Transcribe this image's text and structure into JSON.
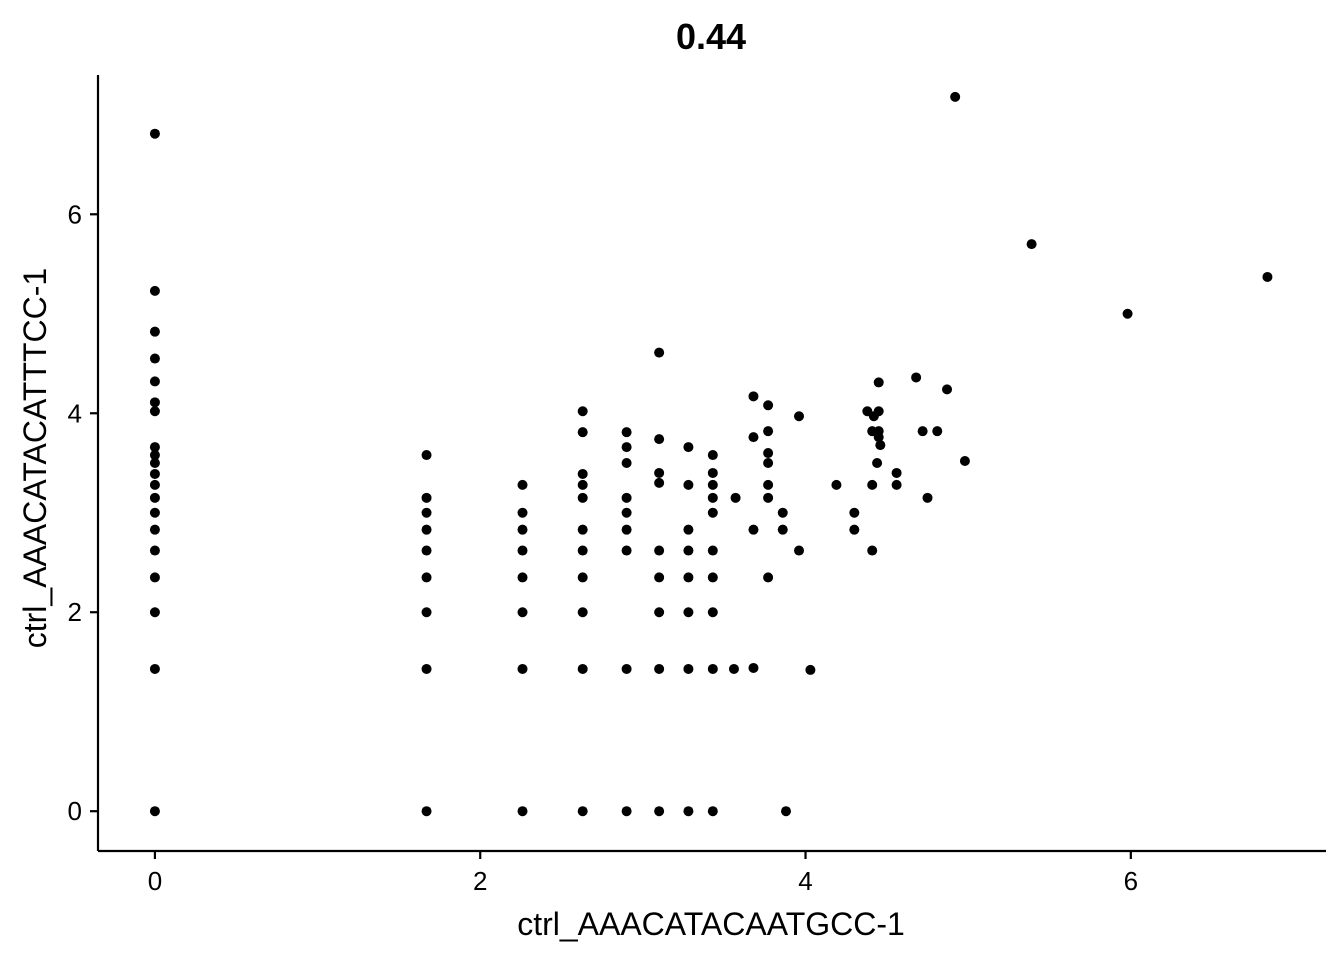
{
  "chart_data": {
    "type": "scatter",
    "title": "0.44",
    "xlabel": "ctrl_AAACATACAATGCC-1",
    "ylabel": "ctrl_AAACATACATTTCC-1",
    "xlim": [
      -0.35,
      7.2
    ],
    "ylim": [
      -0.4,
      7.4
    ],
    "xticks": [
      0,
      2,
      4,
      6
    ],
    "yticks": [
      0,
      2,
      4,
      6
    ],
    "grid": false,
    "legend": "none",
    "point_color": "#000000",
    "points": [
      [
        0,
        0
      ],
      [
        0,
        1.43
      ],
      [
        0,
        2.0
      ],
      [
        0,
        2.35
      ],
      [
        0,
        2.62
      ],
      [
        0,
        2.83
      ],
      [
        0,
        3.0
      ],
      [
        0,
        3.15
      ],
      [
        0,
        3.28
      ],
      [
        0,
        3.39
      ],
      [
        0,
        3.5
      ],
      [
        0,
        3.58
      ],
      [
        0,
        3.66
      ],
      [
        0,
        4.02
      ],
      [
        0,
        4.11
      ],
      [
        0,
        4.32
      ],
      [
        0,
        4.55
      ],
      [
        0,
        4.82
      ],
      [
        0,
        5.23
      ],
      [
        0,
        6.81
      ],
      [
        1.67,
        0
      ],
      [
        1.67,
        1.43
      ],
      [
        1.67,
        2.0
      ],
      [
        1.67,
        2.35
      ],
      [
        1.67,
        2.62
      ],
      [
        1.67,
        2.83
      ],
      [
        1.67,
        3.0
      ],
      [
        1.67,
        3.15
      ],
      [
        1.67,
        3.58
      ],
      [
        2.26,
        0
      ],
      [
        2.26,
        1.43
      ],
      [
        2.26,
        2.0
      ],
      [
        2.26,
        2.35
      ],
      [
        2.26,
        2.62
      ],
      [
        2.26,
        2.83
      ],
      [
        2.26,
        3.0
      ],
      [
        2.26,
        3.28
      ],
      [
        2.63,
        0
      ],
      [
        2.63,
        1.43
      ],
      [
        2.63,
        2.0
      ],
      [
        2.63,
        2.35
      ],
      [
        2.63,
        2.62
      ],
      [
        2.63,
        2.83
      ],
      [
        2.63,
        3.15
      ],
      [
        2.63,
        3.28
      ],
      [
        2.63,
        3.39
      ],
      [
        2.63,
        3.81
      ],
      [
        2.63,
        4.02
      ],
      [
        2.9,
        0
      ],
      [
        2.9,
        1.43
      ],
      [
        2.9,
        2.62
      ],
      [
        2.9,
        2.83
      ],
      [
        2.9,
        3.0
      ],
      [
        2.9,
        3.15
      ],
      [
        2.9,
        3.5
      ],
      [
        2.9,
        3.66
      ],
      [
        2.9,
        3.81
      ],
      [
        3.1,
        0
      ],
      [
        3.1,
        1.43
      ],
      [
        3.1,
        2.0
      ],
      [
        3.1,
        2.35
      ],
      [
        3.1,
        2.62
      ],
      [
        3.1,
        3.3
      ],
      [
        3.1,
        3.4
      ],
      [
        3.1,
        3.74
      ],
      [
        3.1,
        4.61
      ],
      [
        3.28,
        0
      ],
      [
        3.28,
        1.43
      ],
      [
        3.28,
        2.0
      ],
      [
        3.28,
        2.35
      ],
      [
        3.28,
        2.62
      ],
      [
        3.28,
        2.83
      ],
      [
        3.28,
        3.28
      ],
      [
        3.28,
        3.66
      ],
      [
        3.43,
        0
      ],
      [
        3.43,
        1.43
      ],
      [
        3.43,
        2.0
      ],
      [
        3.43,
        2.35
      ],
      [
        3.43,
        2.62
      ],
      [
        3.43,
        3.0
      ],
      [
        3.43,
        3.15
      ],
      [
        3.43,
        3.28
      ],
      [
        3.43,
        3.4
      ],
      [
        3.43,
        3.58
      ],
      [
        3.56,
        1.43
      ],
      [
        3.57,
        3.15
      ],
      [
        3.68,
        1.44
      ],
      [
        3.68,
        2.83
      ],
      [
        3.68,
        3.76
      ],
      [
        3.68,
        4.17
      ],
      [
        3.77,
        2.35
      ],
      [
        3.77,
        3.15
      ],
      [
        3.77,
        3.28
      ],
      [
        3.77,
        3.5
      ],
      [
        3.77,
        3.6
      ],
      [
        3.77,
        3.82
      ],
      [
        3.77,
        4.08
      ],
      [
        3.86,
        3.0
      ],
      [
        3.86,
        2.83
      ],
      [
        3.88,
        0
      ],
      [
        3.96,
        2.62
      ],
      [
        3.96,
        3.97
      ],
      [
        4.03,
        1.42
      ],
      [
        4.19,
        3.28
      ],
      [
        4.3,
        2.83
      ],
      [
        4.3,
        3.0
      ],
      [
        4.38,
        4.02
      ],
      [
        4.41,
        2.62
      ],
      [
        4.41,
        3.28
      ],
      [
        4.41,
        3.82
      ],
      [
        4.42,
        3.97
      ],
      [
        4.44,
        3.5
      ],
      [
        4.45,
        3.76
      ],
      [
        4.45,
        3.82
      ],
      [
        4.45,
        4.02
      ],
      [
        4.46,
        3.68
      ],
      [
        4.45,
        4.31
      ],
      [
        4.56,
        3.28
      ],
      [
        4.56,
        3.4
      ],
      [
        4.68,
        4.36
      ],
      [
        4.72,
        3.82
      ],
      [
        4.75,
        3.15
      ],
      [
        4.81,
        3.82
      ],
      [
        4.87,
        4.24
      ],
      [
        4.92,
        7.18
      ],
      [
        4.98,
        3.52
      ],
      [
        5.39,
        5.7
      ],
      [
        5.98,
        5.0
      ],
      [
        6.84,
        5.37
      ]
    ]
  }
}
